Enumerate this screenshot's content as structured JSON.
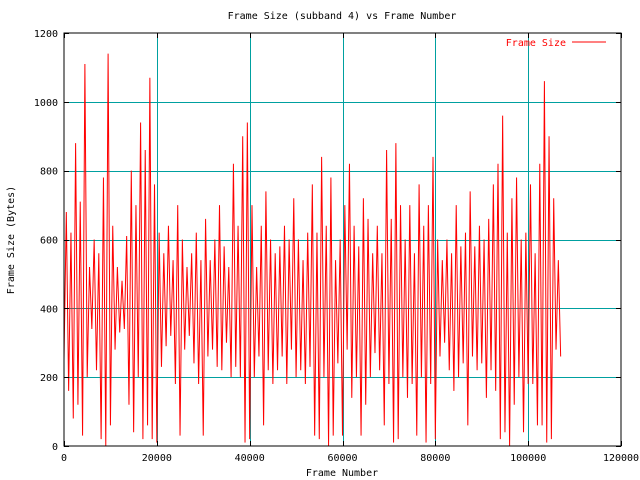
{
  "chart_data": {
    "type": "line",
    "title": "Frame Size (subband 4) vs Frame Number",
    "xlabel": "Frame Number",
    "ylabel": "Frame Size (Bytes)",
    "xlim": [
      0,
      120000
    ],
    "ylim": [
      0,
      1200
    ],
    "x_ticks": [
      0,
      20000,
      40000,
      60000,
      80000,
      100000,
      120000
    ],
    "x_tick_labels": [
      "0",
      "20000",
      "40000",
      "60000",
      "80000",
      "100000",
      "120000"
    ],
    "y_ticks": [
      0,
      200,
      400,
      600,
      800,
      1000,
      1200
    ],
    "y_tick_labels": [
      "0",
      "200",
      "400",
      "600",
      "800",
      "1000",
      "1200"
    ],
    "grid": true,
    "legend_position": "top-right",
    "colors": {
      "series": "#ff0000",
      "grid": "#00a0a0",
      "axis": "#000000"
    },
    "series": [
      {
        "name": "Frame Size",
        "x_range": [
          0,
          107000
        ],
        "points": [
          [
            0,
            250
          ],
          [
            500,
            680
          ],
          [
            1000,
            160
          ],
          [
            1500,
            620
          ],
          [
            2000,
            80
          ],
          [
            2500,
            880
          ],
          [
            3000,
            120
          ],
          [
            3500,
            710
          ],
          [
            4000,
            30
          ],
          [
            4500,
            1110
          ],
          [
            5000,
            200
          ],
          [
            5500,
            520
          ],
          [
            6000,
            340
          ],
          [
            6500,
            600
          ],
          [
            7000,
            220
          ],
          [
            7500,
            560
          ],
          [
            8000,
            20
          ],
          [
            8500,
            780
          ],
          [
            9000,
            0
          ],
          [
            9500,
            1140
          ],
          [
            10000,
            60
          ],
          [
            10500,
            640
          ],
          [
            11000,
            280
          ],
          [
            11500,
            520
          ],
          [
            12000,
            330
          ],
          [
            12500,
            480
          ],
          [
            13000,
            340
          ],
          [
            13500,
            610
          ],
          [
            14000,
            120
          ],
          [
            14500,
            800
          ],
          [
            15000,
            40
          ],
          [
            15500,
            700
          ],
          [
            16000,
            200
          ],
          [
            16500,
            940
          ],
          [
            17000,
            20
          ],
          [
            17500,
            860
          ],
          [
            18000,
            60
          ],
          [
            18500,
            1070
          ],
          [
            19000,
            20
          ],
          [
            19500,
            760
          ],
          [
            20000,
            10
          ],
          [
            20500,
            620
          ],
          [
            21000,
            230
          ],
          [
            21500,
            560
          ],
          [
            22000,
            290
          ],
          [
            22500,
            640
          ],
          [
            23000,
            320
          ],
          [
            23500,
            540
          ],
          [
            24000,
            180
          ],
          [
            24500,
            700
          ],
          [
            25000,
            30
          ],
          [
            25500,
            600
          ],
          [
            26000,
            280
          ],
          [
            26500,
            520
          ],
          [
            27000,
            320
          ],
          [
            27500,
            560
          ],
          [
            28000,
            240
          ],
          [
            28500,
            620
          ],
          [
            29000,
            180
          ],
          [
            29500,
            540
          ],
          [
            30000,
            30
          ],
          [
            30500,
            660
          ],
          [
            31000,
            260
          ],
          [
            31500,
            540
          ],
          [
            32000,
            280
          ],
          [
            32500,
            600
          ],
          [
            33000,
            230
          ],
          [
            33500,
            700
          ],
          [
            34000,
            220
          ],
          [
            34500,
            580
          ],
          [
            35000,
            300
          ],
          [
            35500,
            520
          ],
          [
            36000,
            200
          ],
          [
            36500,
            820
          ],
          [
            37000,
            230
          ],
          [
            37500,
            640
          ],
          [
            38000,
            200
          ],
          [
            38500,
            900
          ],
          [
            39000,
            10
          ],
          [
            39500,
            940
          ],
          [
            40000,
            20
          ],
          [
            40500,
            700
          ],
          [
            41000,
            200
          ],
          [
            41500,
            520
          ],
          [
            42000,
            260
          ],
          [
            42500,
            640
          ],
          [
            43000,
            60
          ],
          [
            43500,
            740
          ],
          [
            44000,
            220
          ],
          [
            44500,
            600
          ],
          [
            45000,
            180
          ],
          [
            45500,
            560
          ],
          [
            46000,
            220
          ],
          [
            46500,
            580
          ],
          [
            47000,
            260
          ],
          [
            47500,
            640
          ],
          [
            48000,
            180
          ],
          [
            48500,
            600
          ],
          [
            49000,
            280
          ],
          [
            49500,
            720
          ],
          [
            50000,
            200
          ],
          [
            50500,
            600
          ],
          [
            51000,
            220
          ],
          [
            51500,
            540
          ],
          [
            52000,
            180
          ],
          [
            52500,
            620
          ],
          [
            53000,
            230
          ],
          [
            53500,
            760
          ],
          [
            54000,
            30
          ],
          [
            54500,
            620
          ],
          [
            55000,
            20
          ],
          [
            55500,
            840
          ],
          [
            56000,
            200
          ],
          [
            56500,
            640
          ],
          [
            57000,
            0
          ],
          [
            57500,
            780
          ],
          [
            58000,
            30
          ],
          [
            58500,
            540
          ],
          [
            59000,
            240
          ],
          [
            59500,
            600
          ],
          [
            60000,
            30
          ],
          [
            60500,
            700
          ],
          [
            61000,
            280
          ],
          [
            61500,
            820
          ],
          [
            62000,
            140
          ],
          [
            62500,
            640
          ],
          [
            63000,
            200
          ],
          [
            63500,
            580
          ],
          [
            64000,
            30
          ],
          [
            64500,
            720
          ],
          [
            65000,
            120
          ],
          [
            65500,
            660
          ],
          [
            66000,
            200
          ],
          [
            66500,
            560
          ],
          [
            67000,
            270
          ],
          [
            67500,
            640
          ],
          [
            68000,
            220
          ],
          [
            68500,
            560
          ],
          [
            69000,
            60
          ],
          [
            69500,
            860
          ],
          [
            70000,
            180
          ],
          [
            70500,
            660
          ],
          [
            71000,
            10
          ],
          [
            71500,
            880
          ],
          [
            72000,
            20
          ],
          [
            72500,
            700
          ],
          [
            73000,
            200
          ],
          [
            73500,
            600
          ],
          [
            74000,
            140
          ],
          [
            74500,
            700
          ],
          [
            75000,
            180
          ],
          [
            75500,
            560
          ],
          [
            76000,
            30
          ],
          [
            76500,
            760
          ],
          [
            77000,
            200
          ],
          [
            77500,
            640
          ],
          [
            78000,
            10
          ],
          [
            78500,
            700
          ],
          [
            79000,
            180
          ],
          [
            79500,
            840
          ],
          [
            80000,
            20
          ],
          [
            80500,
            600
          ],
          [
            81000,
            260
          ],
          [
            81500,
            540
          ],
          [
            82000,
            300
          ],
          [
            82500,
            600
          ],
          [
            83000,
            220
          ],
          [
            83500,
            560
          ],
          [
            84000,
            160
          ],
          [
            84500,
            700
          ],
          [
            85000,
            200
          ],
          [
            85500,
            580
          ],
          [
            86000,
            240
          ],
          [
            86500,
            620
          ],
          [
            87000,
            60
          ],
          [
            87500,
            740
          ],
          [
            88000,
            260
          ],
          [
            88500,
            580
          ],
          [
            89000,
            220
          ],
          [
            89500,
            640
          ],
          [
            90000,
            240
          ],
          [
            90500,
            600
          ],
          [
            91000,
            140
          ],
          [
            91500,
            660
          ],
          [
            92000,
            220
          ],
          [
            92500,
            760
          ],
          [
            93000,
            160
          ],
          [
            93500,
            820
          ],
          [
            94000,
            20
          ],
          [
            94500,
            960
          ],
          [
            95000,
            40
          ],
          [
            95500,
            620
          ],
          [
            96000,
            0
          ],
          [
            96500,
            720
          ],
          [
            97000,
            120
          ],
          [
            97500,
            780
          ],
          [
            98000,
            200
          ],
          [
            98500,
            600
          ],
          [
            99000,
            40
          ],
          [
            99500,
            620
          ],
          [
            100000,
            180
          ],
          [
            100500,
            760
          ],
          [
            101000,
            180
          ],
          [
            101500,
            560
          ],
          [
            102000,
            60
          ],
          [
            102500,
            820
          ],
          [
            103000,
            60
          ],
          [
            103500,
            1060
          ],
          [
            104000,
            10
          ],
          [
            104500,
            900
          ],
          [
            105000,
            20
          ],
          [
            105500,
            720
          ],
          [
            106000,
            280
          ],
          [
            106500,
            540
          ],
          [
            107000,
            260
          ]
        ]
      }
    ]
  }
}
